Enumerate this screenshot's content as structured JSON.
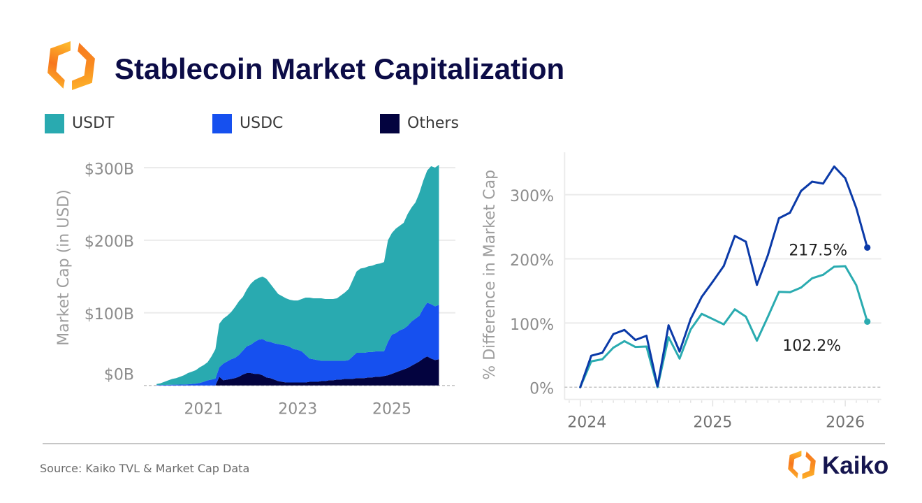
{
  "header": {
    "title": "Stablecoin Market Capitalization"
  },
  "chart_data": [
    {
      "type": "area",
      "stacked": true,
      "title": "",
      "xlabel": "",
      "ylabel": "Market Cap (in USD)",
      "xlim": [
        2019.73,
        2026.35
      ],
      "ylim": [
        0,
        310
      ],
      "xticks": [
        2021,
        2023,
        2025
      ],
      "xtick_labels": [
        "2021",
        "2023",
        "2025"
      ],
      "yticks": [
        0,
        100,
        200,
        300
      ],
      "ytick_labels": [
        "$0B",
        "$100B",
        "$200B",
        "$300B"
      ],
      "grid": true,
      "legend_position": "top",
      "x": [
        "2020-01",
        "2020-02",
        "2020-03",
        "2020-04",
        "2020-05",
        "2020-06",
        "2020-07",
        "2020-08",
        "2020-09",
        "2020-10",
        "2020-11",
        "2020-12",
        "2021-01",
        "2021-02",
        "2021-03",
        "2021-04",
        "2021-05",
        "2021-06",
        "2021-07",
        "2021-08",
        "2021-09",
        "2021-10",
        "2021-11",
        "2021-12",
        "2022-01",
        "2022-02",
        "2022-03",
        "2022-04",
        "2022-05",
        "2022-06",
        "2022-07",
        "2022-08",
        "2022-09",
        "2022-10",
        "2022-11",
        "2022-12",
        "2023-01",
        "2023-02",
        "2023-03",
        "2023-04",
        "2023-05",
        "2023-06",
        "2023-07",
        "2023-08",
        "2023-09",
        "2023-10",
        "2023-11",
        "2023-12",
        "2024-01",
        "2024-02",
        "2024-03",
        "2024-04",
        "2024-05",
        "2024-06",
        "2024-07",
        "2024-08",
        "2024-09",
        "2024-10",
        "2024-11",
        "2024-12",
        "2025-01",
        "2025-02",
        "2025-03",
        "2025-04",
        "2025-05",
        "2025-06",
        "2025-07",
        "2025-08",
        "2025-09",
        "2025-10",
        "2025-11",
        "2025-12",
        "2026-01"
      ],
      "series": [
        {
          "name": "USDT",
          "color": "#29aab0",
          "values": [
            1.5,
            2.4,
            4.3,
            6.2,
            8,
            9,
            10.8,
            12.7,
            15.5,
            17,
            18.5,
            21.5,
            23,
            25,
            32,
            40.5,
            60,
            62,
            63,
            65,
            70,
            74,
            74,
            78,
            84,
            85,
            85,
            86,
            86,
            80,
            75,
            69,
            67,
            65,
            65,
            67,
            68,
            72,
            79,
            84,
            84,
            85,
            86,
            85,
            85,
            85,
            86,
            90,
            94,
            98,
            105,
            112,
            116,
            117,
            118,
            119,
            120,
            121,
            123,
            140,
            140,
            144,
            144,
            146,
            154,
            157,
            160,
            169,
            176,
            182,
            190,
            191,
            193
          ]
        },
        {
          "name": "USDC",
          "color": "#1650ef",
          "values": [
            0.5,
            0.6,
            0.7,
            0.8,
            1,
            1,
            1.2,
            1.3,
            1.5,
            2,
            2.5,
            3.5,
            5,
            7,
            8,
            9.5,
            13,
            23,
            25,
            27,
            28,
            30,
            33,
            37,
            39,
            44,
            47,
            50,
            50,
            50,
            50,
            51,
            51,
            51,
            49,
            46,
            45,
            43,
            38,
            32,
            31,
            30,
            28,
            28,
            27,
            27,
            26,
            26,
            25,
            26,
            31,
            35,
            35,
            35,
            35,
            35,
            35,
            35,
            34,
            46,
            54,
            54,
            56,
            56,
            58,
            61,
            62,
            63,
            69,
            74,
            75,
            74,
            75
          ]
        },
        {
          "name": "Others",
          "color": "#03033f",
          "values": [
            0,
            0,
            0,
            0,
            0,
            0,
            0,
            0,
            0,
            0,
            0,
            0,
            0,
            0,
            0,
            0,
            12,
            7,
            8,
            9,
            10,
            12,
            15,
            17,
            17,
            16,
            16,
            14,
            11,
            10,
            8,
            6,
            5,
            4,
            4,
            4,
            4,
            4,
            4,
            5,
            5,
            5,
            6,
            6,
            7,
            7,
            8,
            8,
            9,
            9,
            9,
            10,
            10,
            10,
            11,
            11,
            12,
            12,
            13,
            14,
            16,
            18,
            20,
            22,
            24,
            27,
            30,
            33,
            37,
            40,
            37,
            35,
            36
          ]
        }
      ]
    },
    {
      "type": "line",
      "title": "",
      "xlabel": "",
      "ylabel": "% Difference in Market Cap",
      "xlim": [
        2023.882,
        2026.272
      ],
      "ylim": [
        -19,
        366
      ],
      "xticks": [
        2024,
        2025,
        2026
      ],
      "xtick_labels": [
        "2024",
        "2025",
        "2026"
      ],
      "yticks": [
        0,
        100,
        200,
        300
      ],
      "ytick_labels": [
        "0%",
        "100%",
        "200%",
        "300%"
      ],
      "grid": true,
      "x": [
        "2024-01",
        "2024-02",
        "2024-03",
        "2024-04",
        "2024-05",
        "2024-06",
        "2024-07",
        "2024-08",
        "2024-09",
        "2024-10",
        "2024-11",
        "2024-12",
        "2025-01",
        "2025-02",
        "2025-03",
        "2025-04",
        "2025-05",
        "2025-06",
        "2025-07",
        "2025-08",
        "2025-09",
        "2025-10",
        "2025-11",
        "2025-12",
        "2026-01",
        "2026-02",
        "2026-03"
      ],
      "series": [
        {
          "legend_index": 1,
          "color": "#0b3aa8",
          "end_label": "217.5%",
          "values": [
            0,
            49.0,
            53.6,
            82.7,
            89.2,
            73.6,
            80.1,
            1.5,
            96.4,
            55.5,
            106.2,
            140.7,
            164.3,
            188.9,
            235.7,
            226.7,
            159.5,
            206.0,
            263.3,
            272.0,
            305.8,
            320.2,
            317.3,
            343.9,
            325.7,
            279.2,
            217.5
          ]
        },
        {
          "legend_index": 0,
          "color": "#2aabb0",
          "end_label": "102.2%",
          "values": [
            0,
            40.3,
            43.5,
            61.6,
            71.8,
            62.7,
            63.4,
            0,
            77.9,
            44.6,
            89.9,
            114.3,
            106.2,
            97.9,
            121.4,
            109.9,
            72.5,
            109.9,
            148.6,
            148.0,
            155.2,
            169.7,
            175.2,
            187.8,
            188.6,
            158.9,
            102.2
          ]
        }
      ]
    }
  ],
  "footer": {
    "source": "Source: Kaiko TVL & Market Cap Data",
    "brand": "Kaiko"
  }
}
